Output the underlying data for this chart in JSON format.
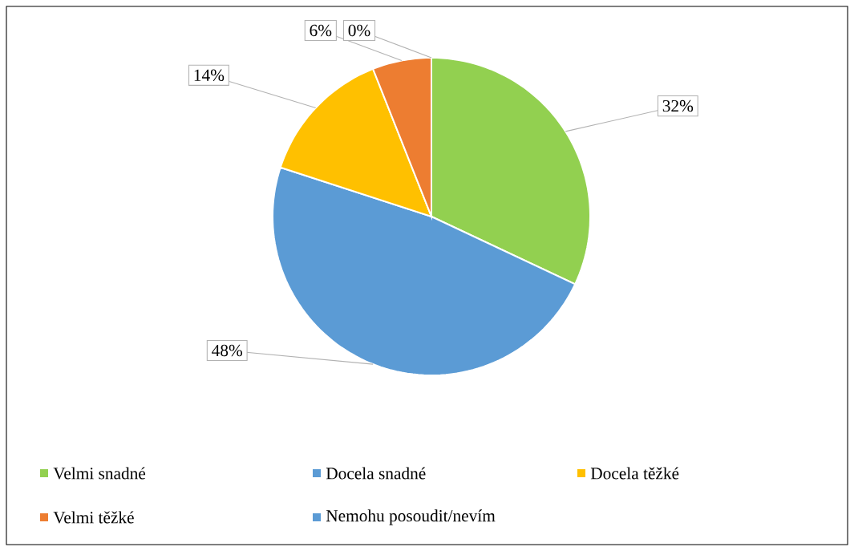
{
  "chart_data": {
    "type": "pie",
    "categories": [
      "Velmi snadné",
      "Docela snadné",
      "Docela těžké",
      "Velmi těžké",
      "Nemohu posoudit/nevím"
    ],
    "values": [
      32,
      48,
      14,
      6,
      0
    ],
    "value_labels": [
      "32%",
      "48%",
      "14%",
      "6%",
      "0%"
    ],
    "colors": [
      "#92d050",
      "#5b9bd5",
      "#ffc000",
      "#ed7d31",
      "#5b9bd5"
    ],
    "legend": "bottom"
  }
}
